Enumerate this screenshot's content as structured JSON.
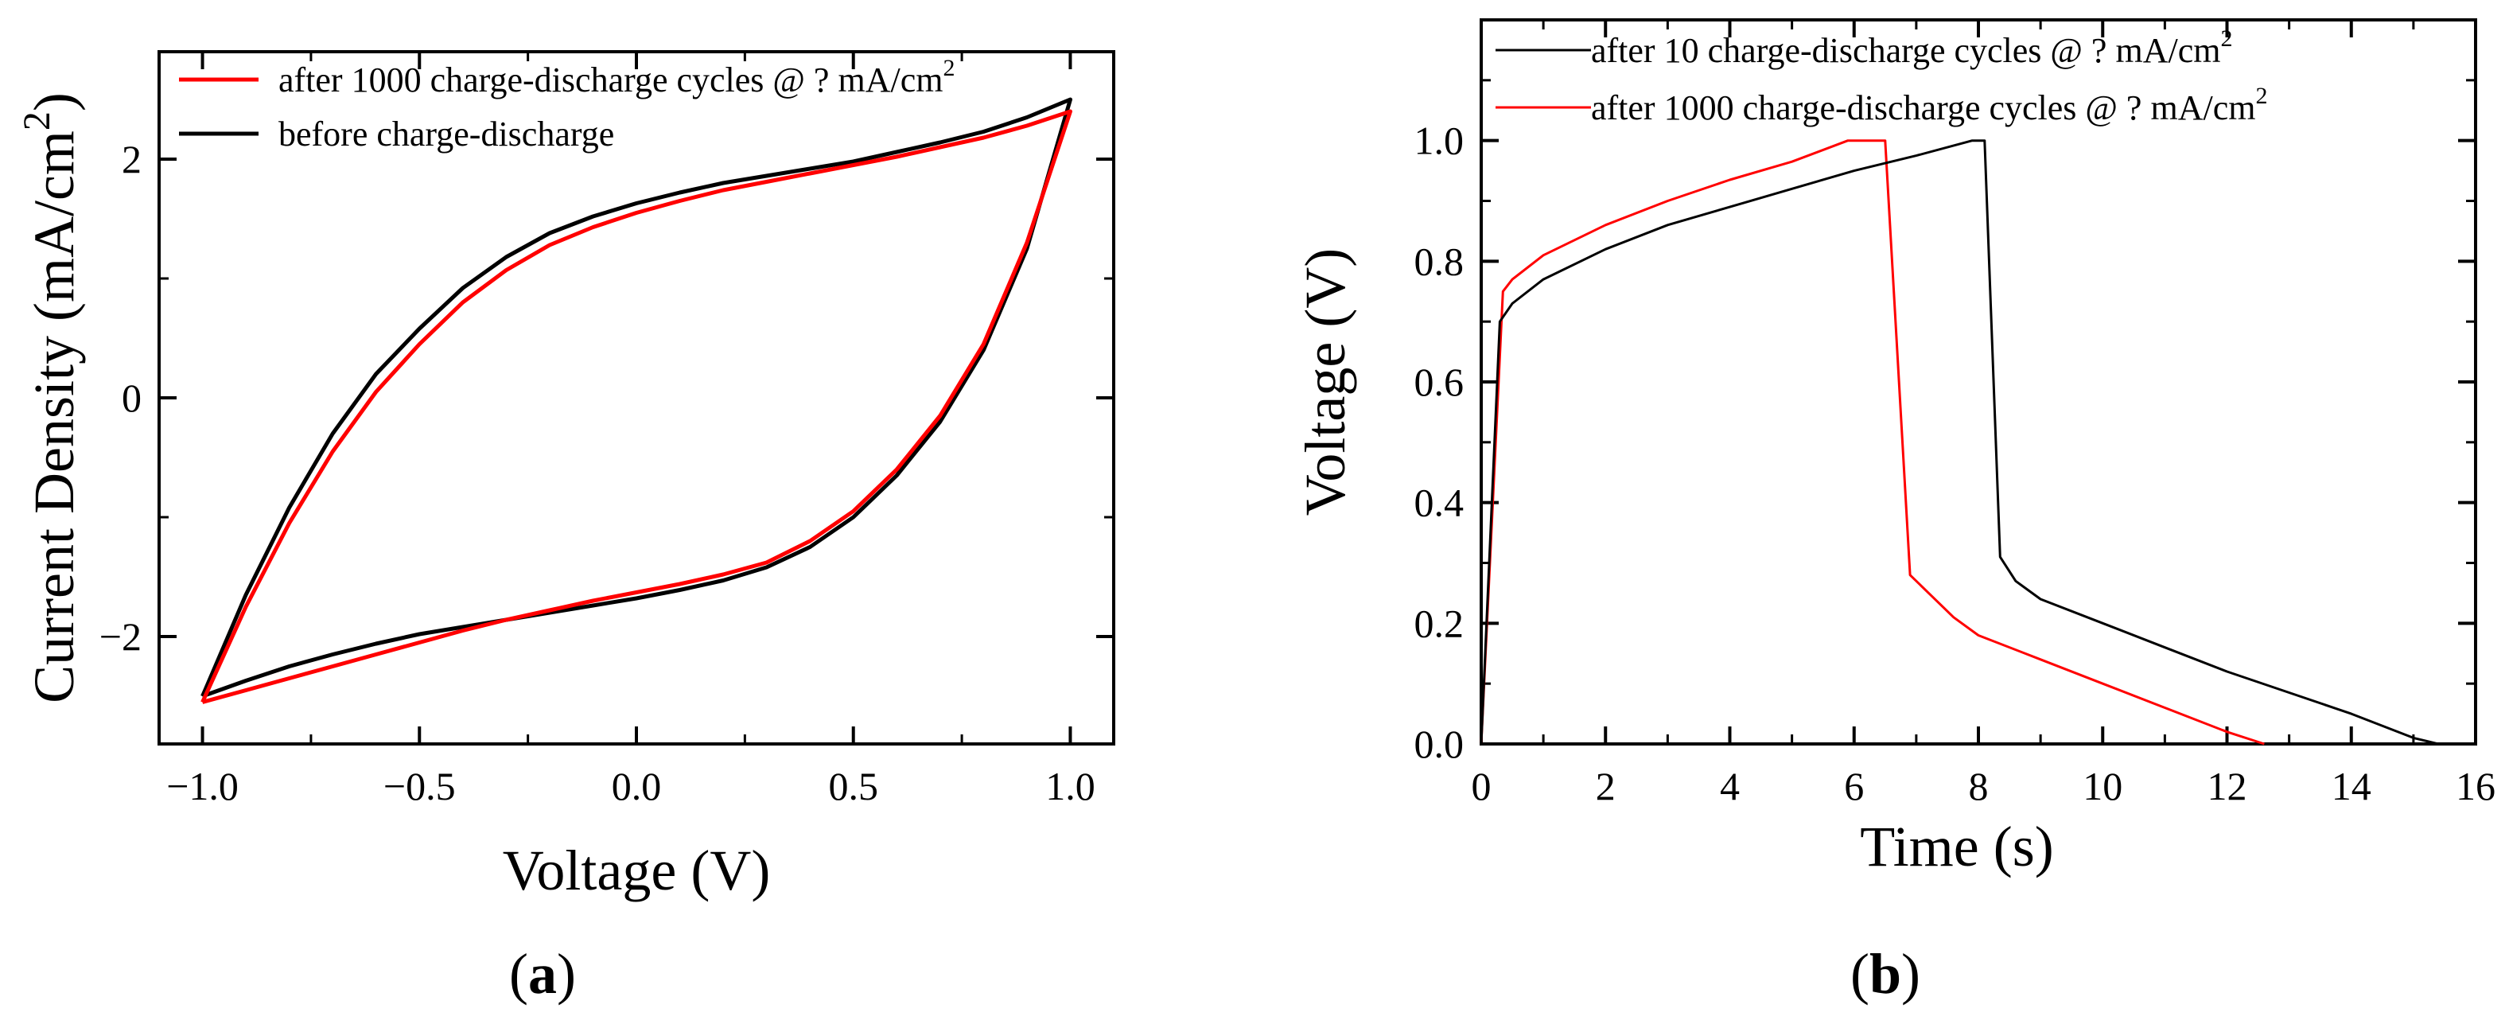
{
  "chart_data": [
    {
      "type": "line",
      "panel_label": "a",
      "xlabel": "Voltage (V)",
      "ylabel_main": "Current Density (mA/cm",
      "ylabel_sup": "2",
      "ylabel_end": ")",
      "xlim": [
        -1.1,
        1.1
      ],
      "ylim": [
        -2.9,
        2.9
      ],
      "xticks": [
        -1.0,
        -0.5,
        0.0,
        0.5,
        1.0
      ],
      "xtick_labels": [
        "−1.0",
        "−0.5",
        "0.0",
        "0.5",
        "1.0"
      ],
      "yticks": [
        -2,
        0,
        2
      ],
      "ytick_labels": [
        "−2",
        "0",
        "2"
      ],
      "legend_position": "top-left",
      "series": [
        {
          "name": "after 1000 charge-discharge cycles @ ?   mA/cm",
          "name_sup": "2",
          "color": "#ff0000",
          "x": [
            -1.0,
            -0.9,
            -0.8,
            -0.7,
            -0.6,
            -0.5,
            -0.4,
            -0.3,
            -0.2,
            -0.1,
            0.0,
            0.1,
            0.2,
            0.3,
            0.4,
            0.5,
            0.6,
            0.7,
            0.8,
            0.9,
            1.0,
            1.0,
            0.9,
            0.8,
            0.7,
            0.6,
            0.5,
            0.4,
            0.3,
            0.2,
            0.1,
            0.0,
            -0.1,
            -0.2,
            -0.3,
            -0.4,
            -0.5,
            -0.6,
            -0.7,
            -0.8,
            -0.9,
            -1.0
          ],
          "y": [
            -2.55,
            -1.75,
            -1.05,
            -0.45,
            0.05,
            0.45,
            0.8,
            1.07,
            1.28,
            1.43,
            1.55,
            1.65,
            1.74,
            1.81,
            1.88,
            1.95,
            2.02,
            2.1,
            2.18,
            2.28,
            2.4,
            2.4,
            1.3,
            0.45,
            -0.15,
            -0.6,
            -0.95,
            -1.2,
            -1.38,
            -1.48,
            -1.56,
            -1.63,
            -1.7,
            -1.78,
            -1.86,
            -1.95,
            -2.05,
            -2.15,
            -2.25,
            -2.35,
            -2.45,
            -2.55
          ]
        },
        {
          "name": "before charge-discharge",
          "name_sup": "",
          "color": "#000000",
          "x": [
            -1.0,
            -0.9,
            -0.8,
            -0.7,
            -0.6,
            -0.5,
            -0.4,
            -0.3,
            -0.2,
            -0.1,
            0.0,
            0.1,
            0.2,
            0.3,
            0.4,
            0.5,
            0.6,
            0.7,
            0.8,
            0.9,
            1.0,
            1.0,
            0.9,
            0.8,
            0.7,
            0.6,
            0.5,
            0.4,
            0.3,
            0.2,
            0.1,
            0.0,
            -0.1,
            -0.2,
            -0.3,
            -0.4,
            -0.5,
            -0.6,
            -0.7,
            -0.8,
            -0.9,
            -1.0
          ],
          "y": [
            -2.5,
            -1.65,
            -0.92,
            -0.3,
            0.2,
            0.58,
            0.92,
            1.18,
            1.38,
            1.52,
            1.63,
            1.72,
            1.8,
            1.86,
            1.92,
            1.98,
            2.06,
            2.14,
            2.23,
            2.35,
            2.5,
            2.5,
            1.25,
            0.4,
            -0.2,
            -0.65,
            -1.0,
            -1.25,
            -1.42,
            -1.53,
            -1.61,
            -1.68,
            -1.74,
            -1.8,
            -1.86,
            -1.92,
            -1.98,
            -2.06,
            -2.15,
            -2.25,
            -2.37,
            -2.5
          ]
        }
      ]
    },
    {
      "type": "line",
      "panel_label": "b",
      "xlabel": "Time (s)",
      "ylabel_main": "Voltage (V)",
      "ylabel_sup": "",
      "ylabel_end": "",
      "xlim": [
        0,
        16
      ],
      "ylim": [
        0,
        1.2
      ],
      "xticks": [
        0,
        2,
        4,
        6,
        8,
        10,
        12,
        14,
        16
      ],
      "xtick_labels": [
        "0",
        "2",
        "4",
        "6",
        "8",
        "10",
        "12",
        "14",
        "16"
      ],
      "yticks": [
        0.0,
        0.2,
        0.4,
        0.6,
        0.8,
        1.0
      ],
      "ytick_labels": [
        "0.0",
        "0.2",
        "0.4",
        "0.6",
        "0.8",
        "1.0"
      ],
      "legend_position": "top",
      "series": [
        {
          "name": "after 10 charge-discharge cycles @ ?   mA/cm",
          "name_sup": "2",
          "color": "#000000",
          "x": [
            0.0,
            0.3,
            0.5,
            1.0,
            2.0,
            3.0,
            4.0,
            5.0,
            6.0,
            7.0,
            7.9,
            8.1,
            8.35,
            8.6,
            9.0,
            10.0,
            11.0,
            12.0,
            13.0,
            14.0,
            15.0,
            15.4
          ],
          "y": [
            0.0,
            0.7,
            0.73,
            0.77,
            0.82,
            0.86,
            0.89,
            0.92,
            0.95,
            0.975,
            1.0,
            1.0,
            0.31,
            0.27,
            0.24,
            0.2,
            0.16,
            0.12,
            0.085,
            0.05,
            0.01,
            0.0
          ]
        },
        {
          "name": "after 1000 charge-discharge cycles @ ?   mA/cm",
          "name_sup": "2",
          "color": "#ff0000",
          "x": [
            0.0,
            0.35,
            0.5,
            1.0,
            2.0,
            3.0,
            4.0,
            5.0,
            5.9,
            6.5,
            6.9,
            7.2,
            7.6,
            8.0,
            9.0,
            10.0,
            11.0,
            12.0,
            12.6
          ],
          "y": [
            0.0,
            0.75,
            0.77,
            0.81,
            0.86,
            0.9,
            0.935,
            0.965,
            1.0,
            1.0,
            0.28,
            0.25,
            0.21,
            0.18,
            0.14,
            0.1,
            0.06,
            0.02,
            0.0
          ]
        }
      ]
    }
  ]
}
